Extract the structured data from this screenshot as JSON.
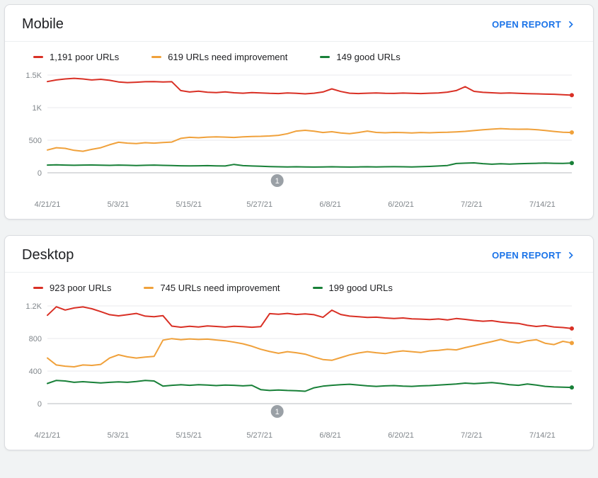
{
  "colors": {
    "poor": "#d93025",
    "needs_improvement": "#f0a13b",
    "good": "#188038",
    "link": "#1a73e8",
    "marker": "#9aa0a6"
  },
  "cards": [
    {
      "title": "Mobile",
      "open_report_label": "OPEN REPORT",
      "legend": [
        {
          "label": "1,191 poor URLs",
          "color_key": "poor"
        },
        {
          "label": "619 URLs need improvement",
          "color_key": "needs_improvement"
        },
        {
          "label": "149 good URLs",
          "color_key": "good"
        }
      ],
      "chart_data": {
        "type": "line",
        "title": "Mobile Core Web Vitals URLs over time",
        "ylim": [
          0,
          1500
        ],
        "y_ticks": [
          {
            "value": 0,
            "label": "0"
          },
          {
            "value": 500,
            "label": "500"
          },
          {
            "value": 1000,
            "label": "1K"
          },
          {
            "value": 1500,
            "label": "1.5K"
          }
        ],
        "total_days": 89,
        "x_ticks": [
          {
            "day": 0,
            "label": "4/21/21"
          },
          {
            "day": 12,
            "label": "5/3/21"
          },
          {
            "day": 24,
            "label": "5/15/21"
          },
          {
            "day": 36,
            "label": "5/27/21"
          },
          {
            "day": 48,
            "label": "6/8/21"
          },
          {
            "day": 60,
            "label": "6/20/21"
          },
          {
            "day": 72,
            "label": "7/2/21"
          },
          {
            "day": 84,
            "label": "7/14/21"
          }
        ],
        "annotation_marker": {
          "day": 39,
          "label": "1"
        },
        "series": [
          {
            "name": "poor URLs",
            "color_key": "poor",
            "values": [
              1400,
              1425,
              1440,
              1450,
              1440,
              1425,
              1435,
              1420,
              1395,
              1385,
              1390,
              1398,
              1400,
              1395,
              1398,
              1262,
              1240,
              1252,
              1237,
              1230,
              1242,
              1228,
              1222,
              1232,
              1226,
              1220,
              1216,
              1226,
              1220,
              1212,
              1222,
              1240,
              1288,
              1248,
              1222,
              1216,
              1222,
              1226,
              1220,
              1218,
              1224,
              1220,
              1216,
              1222,
              1226,
              1238,
              1262,
              1322,
              1250,
              1235,
              1228,
              1222,
              1225,
              1220,
              1215,
              1212,
              1208,
              1205,
              1198,
              1191
            ]
          },
          {
            "name": "URLs need improvement",
            "color_key": "needs_improvement",
            "values": [
              350,
              385,
              375,
              345,
              330,
              360,
              385,
              430,
              468,
              455,
              448,
              462,
              455,
              465,
              472,
              528,
              545,
              538,
              548,
              552,
              548,
              542,
              552,
              558,
              560,
              565,
              575,
              600,
              640,
              652,
              638,
              618,
              630,
              612,
              600,
              618,
              640,
              620,
              614,
              620,
              616,
              612,
              618,
              614,
              620,
              622,
              628,
              636,
              648,
              660,
              670,
              678,
              672,
              668,
              670,
              662,
              650,
              635,
              622,
              619
            ]
          },
          {
            "name": "good URLs",
            "color_key": "good",
            "values": [
              118,
              122,
              118,
              115,
              118,
              120,
              116,
              114,
              118,
              115,
              112,
              115,
              118,
              114,
              112,
              108,
              105,
              108,
              110,
              106,
              104,
              128,
              110,
              104,
              100,
              96,
              92,
              90,
              92,
              90,
              88,
              90,
              92,
              90,
              88,
              90,
              92,
              90,
              92,
              94,
              92,
              90,
              94,
              98,
              104,
              112,
              142,
              148,
              152,
              140,
              132,
              138,
              134,
              138,
              142,
              146,
              150,
              146,
              144,
              149
            ]
          }
        ]
      }
    },
    {
      "title": "Desktop",
      "open_report_label": "OPEN REPORT",
      "legend": [
        {
          "label": "923 poor URLs",
          "color_key": "poor"
        },
        {
          "label": "745 URLs need improvement",
          "color_key": "needs_improvement"
        },
        {
          "label": "199 good URLs",
          "color_key": "good"
        }
      ],
      "chart_data": {
        "type": "line",
        "title": "Desktop Core Web Vitals URLs over time",
        "ylim": [
          0,
          1200
        ],
        "y_ticks": [
          {
            "value": 0,
            "label": "0"
          },
          {
            "value": 400,
            "label": "400"
          },
          {
            "value": 800,
            "label": "800"
          },
          {
            "value": 1200,
            "label": "1.2K"
          }
        ],
        "total_days": 89,
        "x_ticks": [
          {
            "day": 0,
            "label": "4/21/21"
          },
          {
            "day": 12,
            "label": "5/3/21"
          },
          {
            "day": 24,
            "label": "5/15/21"
          },
          {
            "day": 36,
            "label": "5/27/21"
          },
          {
            "day": 48,
            "label": "6/8/21"
          },
          {
            "day": 60,
            "label": "6/20/21"
          },
          {
            "day": 72,
            "label": "7/2/21"
          },
          {
            "day": 84,
            "label": "7/14/21"
          }
        ],
        "annotation_marker": {
          "day": 39,
          "label": "1"
        },
        "series": [
          {
            "name": "poor URLs",
            "color_key": "poor",
            "values": [
              1085,
              1190,
              1150,
              1175,
              1188,
              1165,
              1130,
              1092,
              1078,
              1092,
              1108,
              1075,
              1068,
              1080,
              952,
              938,
              950,
              942,
              955,
              948,
              940,
              950,
              945,
              938,
              945,
              1105,
              1098,
              1108,
              1095,
              1102,
              1092,
              1060,
              1148,
              1095,
              1075,
              1068,
              1058,
              1062,
              1052,
              1045,
              1052,
              1042,
              1038,
              1032,
              1040,
              1028,
              1045,
              1035,
              1022,
              1012,
              1018,
              1002,
              992,
              985,
              962,
              948,
              958,
              942,
              935,
              923
            ]
          },
          {
            "name": "URLs need improvement",
            "color_key": "needs_improvement",
            "values": [
              560,
              475,
              460,
              452,
              475,
              470,
              482,
              560,
              600,
              575,
              560,
              572,
              580,
              780,
              798,
              785,
              795,
              788,
              792,
              782,
              772,
              755,
              735,
              705,
              668,
              640,
              618,
              638,
              625,
              608,
              572,
              542,
              532,
              565,
              598,
              622,
              638,
              625,
              615,
              635,
              648,
              638,
              628,
              648,
              655,
              668,
              660,
              688,
              712,
              738,
              762,
              788,
              760,
              745,
              772,
              785,
              742,
              725,
              765,
              745
            ]
          },
          {
            "name": "good URLs",
            "color_key": "good",
            "values": [
              248,
              285,
              278,
              262,
              270,
              262,
              255,
              262,
              268,
              262,
              272,
              285,
              278,
              215,
              225,
              232,
              225,
              232,
              228,
              222,
              228,
              225,
              218,
              225,
              172,
              162,
              168,
              162,
              158,
              152,
              195,
              215,
              225,
              232,
              238,
              228,
              218,
              212,
              218,
              222,
              215,
              212,
              218,
              222,
              228,
              235,
              242,
              252,
              245,
              252,
              258,
              248,
              232,
              225,
              242,
              228,
              212,
              205,
              202,
              199
            ]
          }
        ]
      }
    }
  ]
}
